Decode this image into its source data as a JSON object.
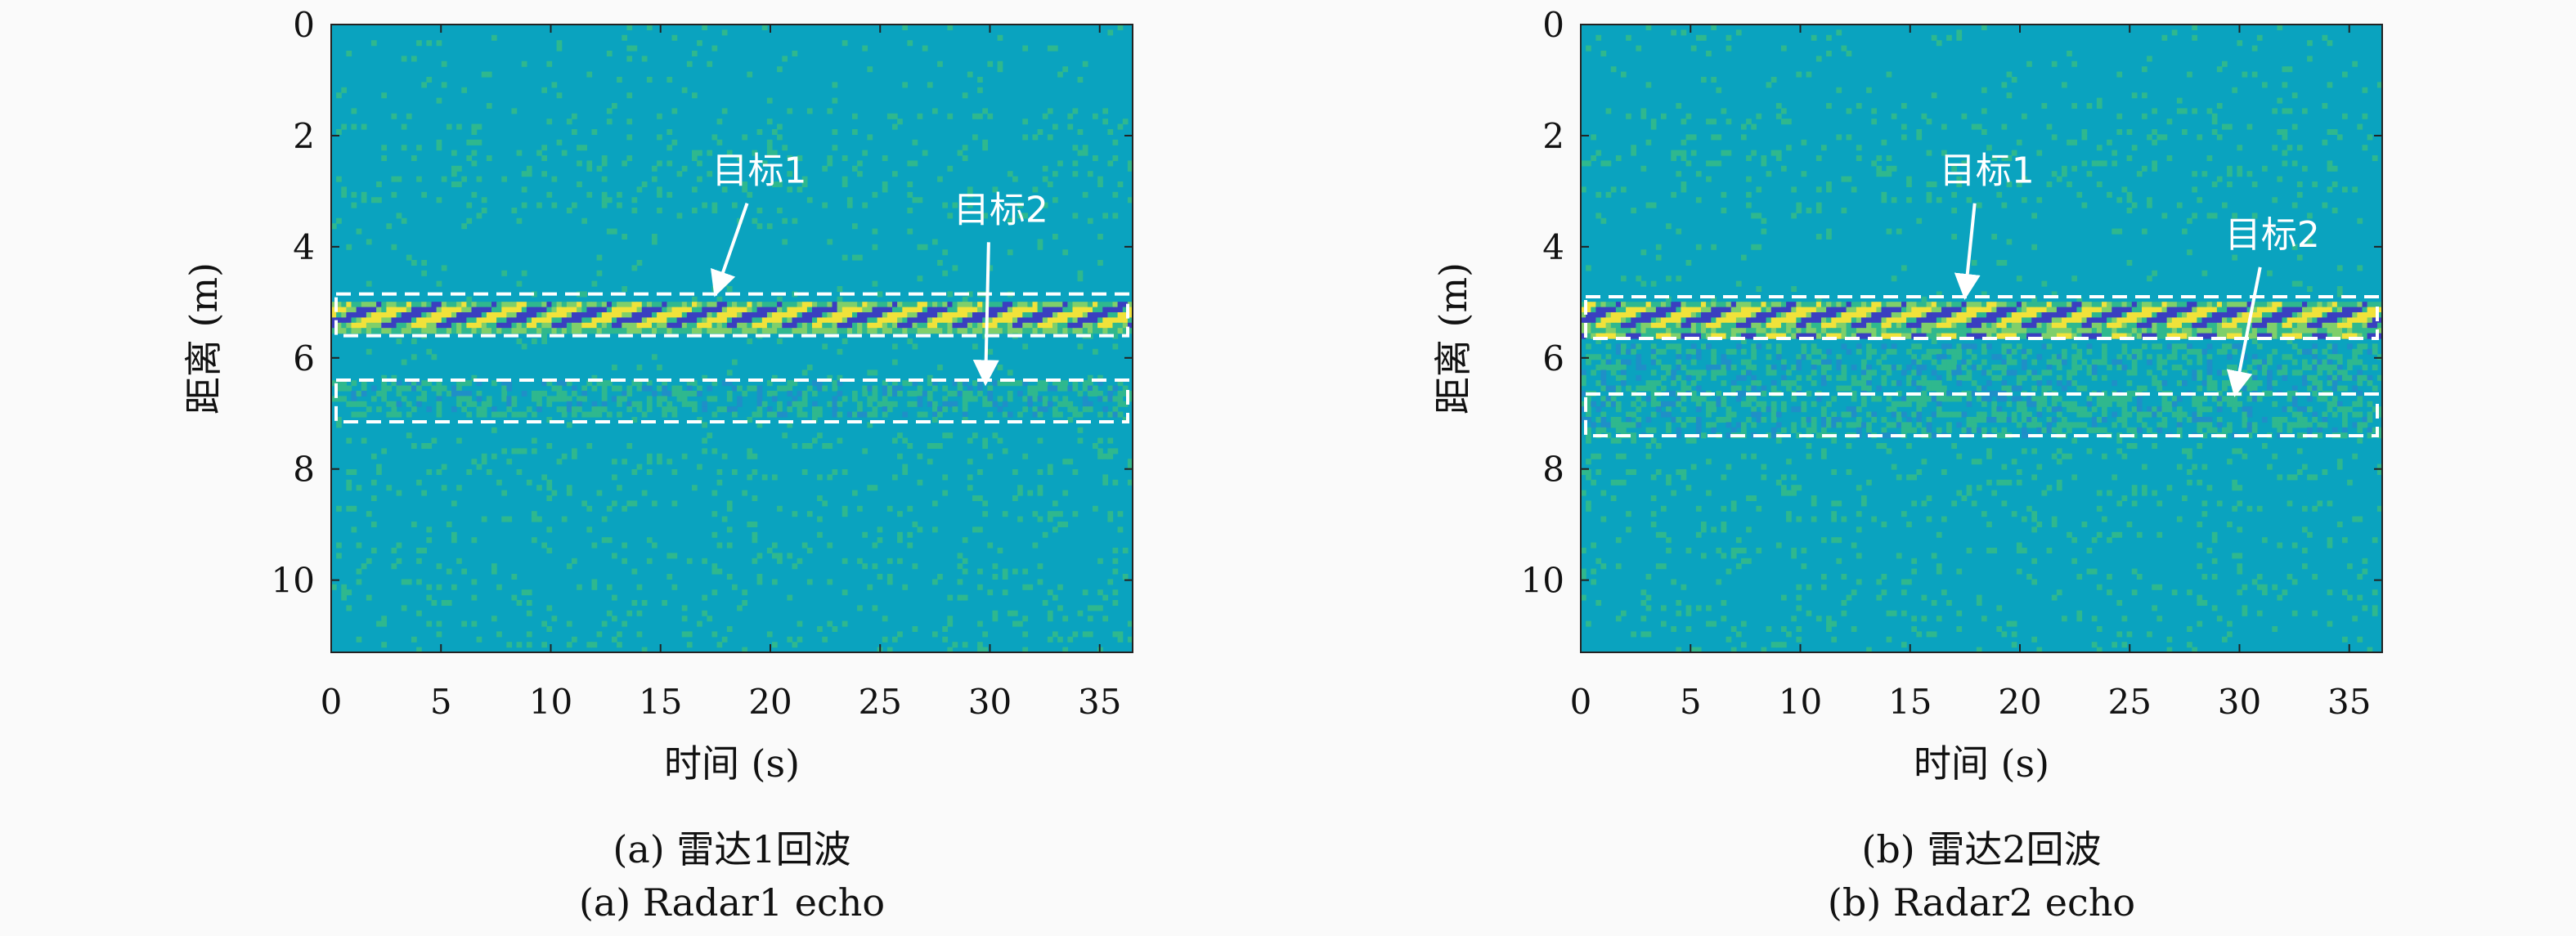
{
  "chart_data": [
    {
      "type": "heatmap",
      "xlabel": "时间 (s)",
      "ylabel": "距离 (m)",
      "xlim": [
        0,
        36.5
      ],
      "ylim": [
        0,
        11.3
      ],
      "y_inverted": true,
      "x_ticks": [
        0,
        5,
        10,
        15,
        20,
        25,
        30,
        35
      ],
      "y_ticks": [
        0,
        2,
        4,
        6,
        8,
        10
      ],
      "caption_cn": "(a) 雷达1回波",
      "caption_en": "(a) Radar1 echo",
      "colors": {
        "background": "#0aa3bf",
        "noise": "#2fb88e",
        "strong_pos": "#f0e23a",
        "strong_neg": "#3a3fc0"
      },
      "echo_band_range_m": [
        4.95,
        5.6
      ],
      "weak_echo_band_range_m": [
        6.4,
        7.1
      ],
      "boxes": [
        {
          "label": "目标1",
          "y_range": [
            4.85,
            5.6
          ]
        },
        {
          "label": "目标2",
          "y_range": [
            6.4,
            7.15
          ]
        }
      ],
      "annotations": [
        {
          "text": "目标1",
          "text_at": [
            19.5,
            2.85
          ],
          "arrow_to": [
            17.5,
            4.85
          ]
        },
        {
          "text": "目标2",
          "text_at": [
            30.5,
            3.55
          ],
          "arrow_to": [
            29.8,
            6.45
          ]
        }
      ]
    },
    {
      "type": "heatmap",
      "xlabel": "时间 (s)",
      "ylabel": "距离 (m)",
      "xlim": [
        0,
        36.5
      ],
      "ylim": [
        0,
        11.3
      ],
      "y_inverted": true,
      "x_ticks": [
        0,
        5,
        10,
        15,
        20,
        25,
        30,
        35
      ],
      "y_ticks": [
        0,
        2,
        4,
        6,
        8,
        10
      ],
      "caption_cn": "(b) 雷达2回波",
      "caption_en": "(b) Radar2 echo",
      "colors": {
        "background": "#0aa3bf",
        "noise": "#2fb88e",
        "strong_pos": "#f0e23a",
        "strong_neg": "#3a3fc0"
      },
      "echo_band_range_m": [
        4.95,
        5.65
      ],
      "weak_echo_band_range_m": [
        5.7,
        7.4
      ],
      "boxes": [
        {
          "label": "目标1",
          "y_range": [
            4.9,
            5.65
          ]
        },
        {
          "label": "目标2",
          "y_range": [
            6.65,
            7.4
          ]
        }
      ],
      "annotations": [
        {
          "text": "目标1",
          "text_at": [
            18.5,
            2.85
          ],
          "arrow_to": [
            17.5,
            4.9
          ]
        },
        {
          "text": "目标2",
          "text_at": [
            31.5,
            4.0
          ],
          "arrow_to": [
            29.8,
            6.65
          ]
        }
      ]
    }
  ]
}
